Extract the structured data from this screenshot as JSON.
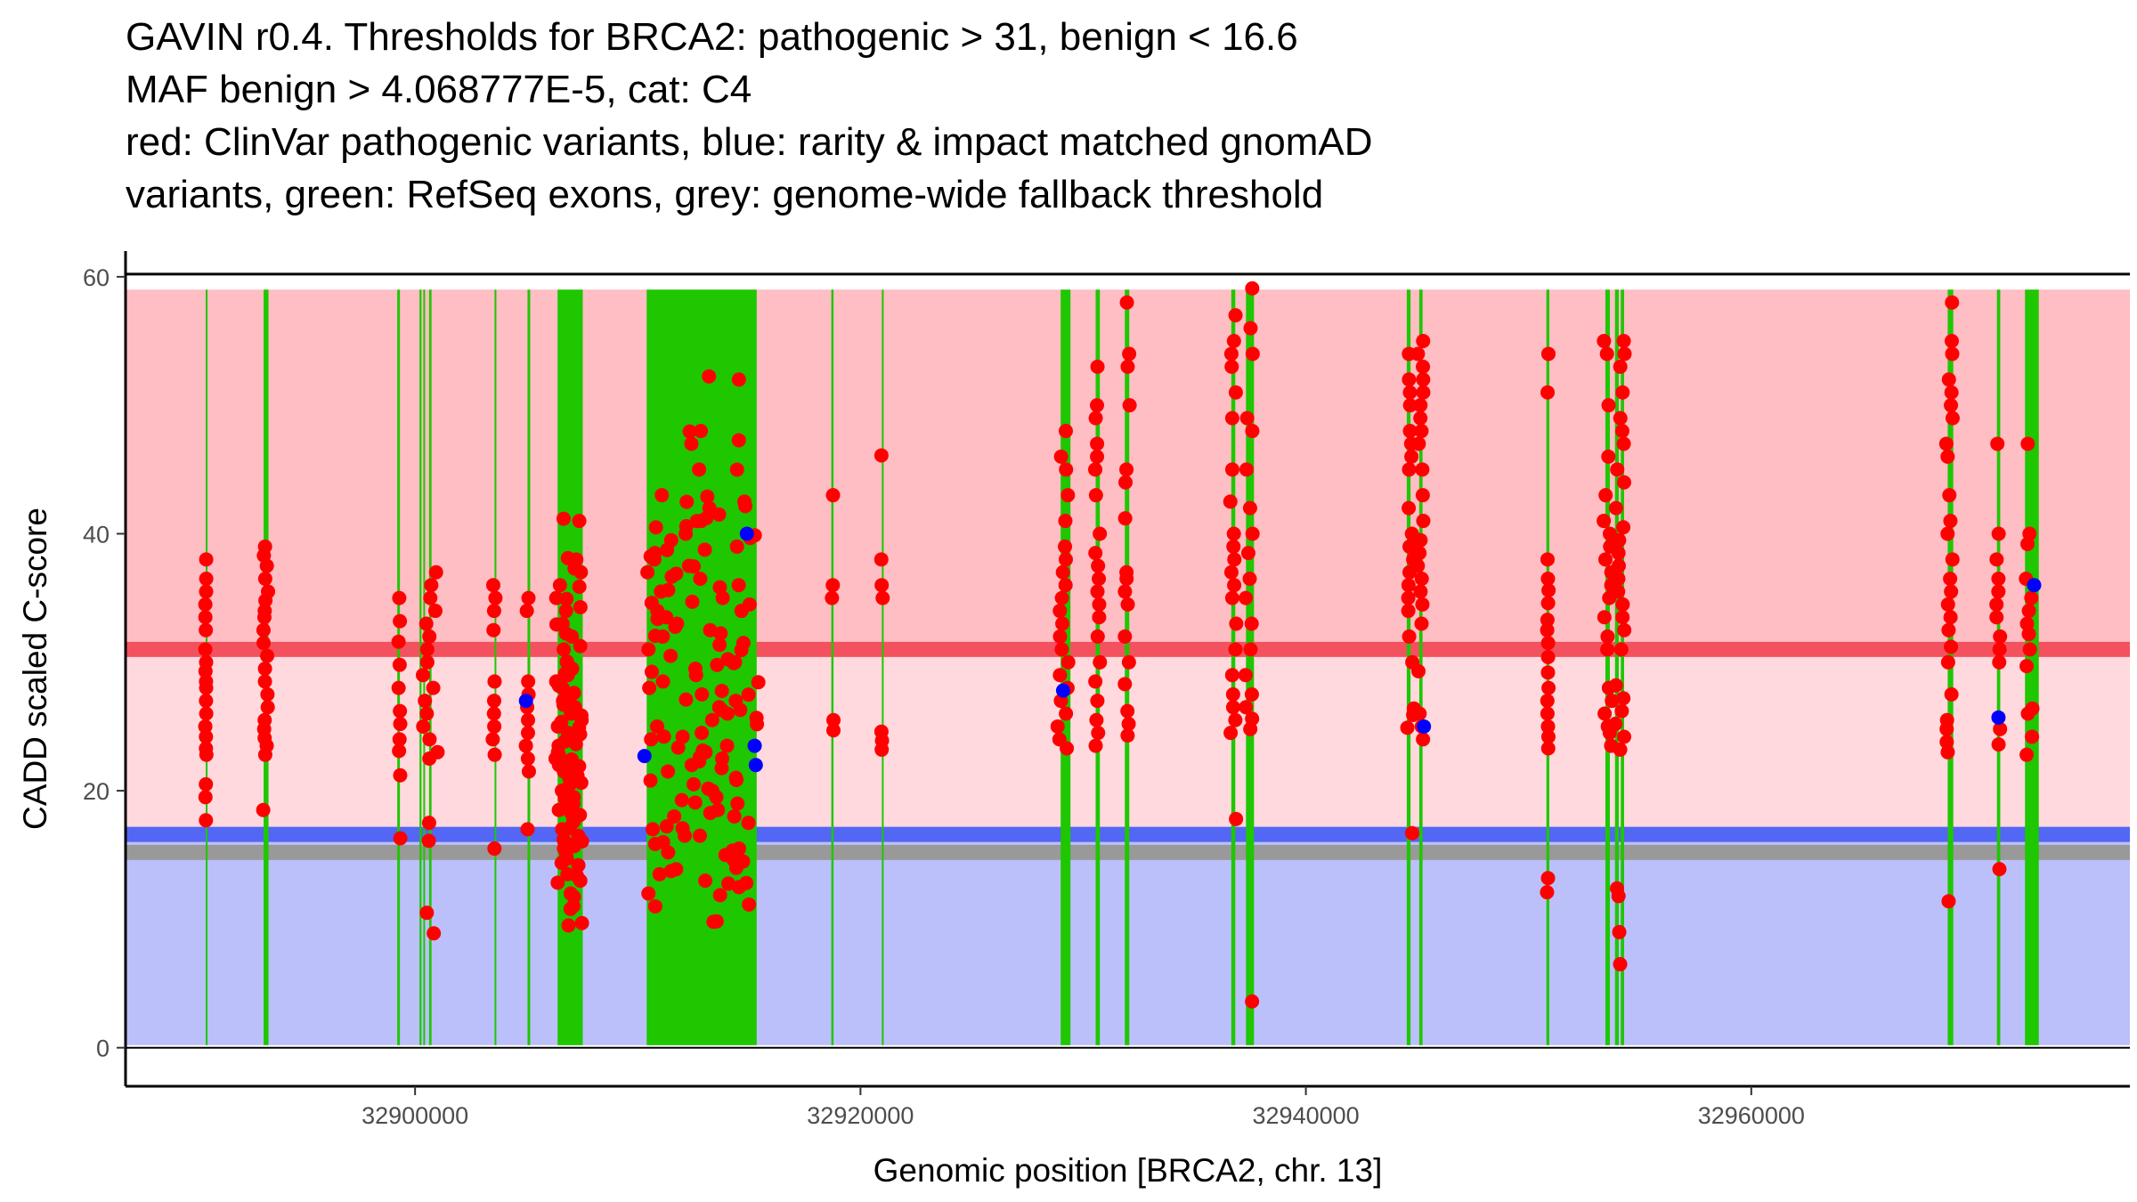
{
  "title_lines": [
    "GAVIN r0.4. Thresholds for BRCA2: pathogenic > 31, benign < 16.6",
    "MAF benign > 4.068777E-5, cat: C4",
    "red: ClinVar pathogenic variants, blue: rarity & impact matched gnomAD",
    "variants, green: RefSeq exons, grey: genome-wide fallback threshold"
  ],
  "chart_data": {
    "type": "scatter",
    "title": "GAVIN r0.4. Thresholds for BRCA2: pathogenic > 31, benign < 16.6 MAF benign > 4.068777E-5, cat: C4 red: ClinVar pathogenic variants, blue: rarity & impact matched gnomAD variants, green: RefSeq exons, grey: genome-wide fallback threshold",
    "xlabel": "Genomic position [BRCA2, chr. 13]",
    "ylabel": "CADD scaled C-score",
    "xlim": [
      32887000,
      32977000
    ],
    "ylim": [
      -3,
      62
    ],
    "x_ticks": [
      32900000,
      32920000,
      32940000,
      32960000
    ],
    "x_tick_labels": [
      "32900000",
      "32920000",
      "32940000",
      "32960000"
    ],
    "y_ticks": [
      0,
      20,
      40,
      60
    ],
    "y_tick_labels": [
      "0",
      "20",
      "40",
      "60"
    ],
    "grid": false,
    "colors": {
      "pathogenic_region": "#ffbdc4",
      "intermediate_region": "#ffd9de",
      "benign_region": "#bbc0fb",
      "pathogenic_threshold_line": "#f4515f",
      "benign_threshold_line": "#5466f4",
      "fallback_threshold_line": "#999999",
      "exon": "#1ec700",
      "clinvar_pathogenic": "#ff0000",
      "gnomad_matched": "#0000ff"
    },
    "regions": [
      {
        "name": "pathogenic",
        "y_from": 31,
        "y_to": 59,
        "color": "#ffbdc4"
      },
      {
        "name": "intermediate",
        "y_from": 16.6,
        "y_to": 31,
        "color": "#ffd9de"
      },
      {
        "name": "benign",
        "y_from": 0.2,
        "y_to": 16.6,
        "color": "#bbc0fb"
      }
    ],
    "threshold_lines": [
      {
        "name": "pathogenic threshold",
        "y": 31,
        "color": "#f4515f"
      },
      {
        "name": "benign threshold",
        "y": 16.6,
        "color": "#5466f4"
      },
      {
        "name": "genome-wide fallback threshold",
        "y": 15.2,
        "color": "#999999"
      }
    ],
    "exons": [
      {
        "start": 32890600,
        "end": 32890660
      },
      {
        "start": 32893200,
        "end": 32893420
      },
      {
        "start": 32899200,
        "end": 32899320
      },
      {
        "start": 32900200,
        "end": 32900290
      },
      {
        "start": 32900370,
        "end": 32900420
      },
      {
        "start": 32900630,
        "end": 32900740
      },
      {
        "start": 32903570,
        "end": 32903630
      },
      {
        "start": 32905050,
        "end": 32905170
      },
      {
        "start": 32906400,
        "end": 32907530
      },
      {
        "start": 32910400,
        "end": 32915340
      },
      {
        "start": 32918690,
        "end": 32918790
      },
      {
        "start": 32920960,
        "end": 32921040
      },
      {
        "start": 32928990,
        "end": 32929430
      },
      {
        "start": 32930560,
        "end": 32930750
      },
      {
        "start": 32931870,
        "end": 32932070
      },
      {
        "start": 32936650,
        "end": 32936830
      },
      {
        "start": 32937310,
        "end": 32937670
      },
      {
        "start": 32944530,
        "end": 32944700
      },
      {
        "start": 32945090,
        "end": 32945240
      },
      {
        "start": 32950800,
        "end": 32950930
      },
      {
        "start": 32953450,
        "end": 32953650
      },
      {
        "start": 32953880,
        "end": 32954050
      },
      {
        "start": 32954140,
        "end": 32954290
      },
      {
        "start": 32968820,
        "end": 32969070
      },
      {
        "start": 32971030,
        "end": 32971180
      },
      {
        "start": 32972290,
        "end": 32972910
      }
    ],
    "series": [
      {
        "name": "ClinVar pathogenic variants",
        "color": "#ff0000",
        "clusters": [
          {
            "x": 32890600,
            "x_spread": 60,
            "values": [
              17.7,
              19.5,
              20.5,
              22.8,
              23.3,
              24.2,
              25.0,
              26.0,
              27.0,
              28.0,
              28.5,
              29.3,
              30.0,
              31.0,
              32.5,
              33.5,
              34.5,
              35.5,
              36.5,
              38.0
            ]
          },
          {
            "x": 32893280,
            "x_spread": 250,
            "values": [
              18.5,
              22.8,
              23.5,
              24.1,
              24.8,
              25.5,
              26.5,
              27.5,
              28.5,
              29.5,
              30.5,
              31.5,
              32.5,
              33.5,
              34.0,
              34.8,
              35.5,
              36.5,
              37.5,
              38.3,
              39.0
            ]
          },
          {
            "x": 32899300,
            "x_spread": 100,
            "values": [
              16.3,
              21.2,
              23.1,
              24.0,
              25.2,
              26.2,
              28.0,
              29.8,
              31.6,
              33.2,
              35.0
            ]
          },
          {
            "x": 32900700,
            "x_spread": 700,
            "values": [
              8.9,
              10.5,
              16.1,
              17.5,
              22.5,
              23.0,
              24.0,
              25.0,
              26.0,
              27.0,
              28.0,
              29.0,
              30.0,
              31.0,
              32.0,
              33.0,
              34.0,
              35.0,
              36.0,
              37.0
            ]
          },
          {
            "x": 32903550,
            "x_spread": 130,
            "values": [
              15.5,
              22.8,
              24.0,
              25.0,
              26.0,
              27.0,
              28.5,
              32.5,
              34.0,
              35.0,
              36.0
            ]
          },
          {
            "x": 32905050,
            "x_spread": 150,
            "values": [
              17.0,
              21.5,
              22.5,
              23.5,
              24.5,
              25.5,
              26.5,
              27.5,
              28.5,
              34.0,
              35.0
            ]
          },
          {
            "x": 32906900,
            "x_spread": 1200,
            "values": [
              9.7,
              10.8,
              12.0,
              13.0,
              13.5,
              14.2,
              15.0,
              15.5,
              16.0,
              16.5,
              17.0,
              17.6,
              18.0,
              18.5,
              19.0,
              19.5,
              20.0,
              20.5,
              21.0,
              21.5,
              22.0,
              22.5,
              23.0,
              23.5,
              24.0,
              24.5,
              25.0,
              25.5,
              26.0,
              26.5,
              27.0,
              27.5,
              28.0,
              28.5,
              29.0,
              29.5,
              30.0,
              31.0,
              32.0,
              33.0,
              34.0,
              35.0,
              36.0,
              37.0,
              38.0,
              41.0
            ]
          },
          {
            "x": 32912900,
            "x_spread": 5100,
            "values": [
              9.8,
              11.0,
              12.0,
              12.5,
              13.0,
              13.5,
              14.0,
              14.5,
              15.0,
              15.5,
              16.0,
              16.5,
              17.0,
              17.5,
              18.0,
              18.5,
              19.0,
              19.5,
              20.0,
              20.5,
              21.0,
              21.5,
              22.0,
              22.5,
              23.0,
              23.5,
              24.0,
              24.5,
              25.0,
              25.5,
              26.0,
              26.5,
              27.0,
              27.5,
              28.0,
              28.5,
              29.0,
              29.5,
              30.0,
              30.5,
              31.0,
              31.5,
              32.0,
              32.5,
              33.0,
              33.5,
              34.0,
              34.5,
              35.0,
              35.5,
              36.0,
              36.5,
              37.0,
              37.5,
              38.0,
              38.5,
              39.0,
              39.5,
              40.0,
              40.5,
              41.0,
              41.5,
              42.0,
              42.5,
              43.0,
              45.0,
              47.0,
              48.0,
              52.0
            ]
          },
          {
            "x": 32918750,
            "x_spread": 80,
            "values": [
              24.7,
              25.5,
              35.0,
              36.0,
              43.0
            ]
          },
          {
            "x": 32920970,
            "x_spread": 80,
            "values": [
              23.2,
              23.9,
              24.6,
              35.0,
              36.0,
              38.0,
              46.1
            ]
          },
          {
            "x": 32929100,
            "x_spread": 500,
            "values": [
              23.3,
              24.0,
              25.0,
              26.0,
              27.0,
              28.0,
              29.0,
              30.0,
              31.0,
              32.0,
              33.0,
              34.0,
              35.0,
              36.0,
              37.0,
              38.0,
              39.0,
              41.0,
              43.0,
              45.0,
              46.0,
              48.0
            ]
          },
          {
            "x": 32930650,
            "x_spread": 220,
            "values": [
              23.5,
              24.5,
              25.5,
              27.0,
              28.5,
              30.0,
              32.0,
              33.5,
              34.5,
              35.5,
              36.5,
              37.5,
              38.5,
              40.0,
              43.0,
              45.0,
              46.0,
              47.0,
              49.0,
              50.0,
              53.0
            ]
          },
          {
            "x": 32931980,
            "x_spread": 220,
            "values": [
              24.3,
              25.2,
              26.2,
              28.3,
              30.0,
              32.0,
              34.5,
              35.5,
              36.5,
              37.0,
              41.2,
              44.0,
              45.0,
              50.0,
              53.0,
              54.0,
              58.0
            ]
          },
          {
            "x": 32936750,
            "x_spread": 300,
            "values": [
              17.8,
              24.5,
              25.5,
              26.5,
              27.5,
              29.0,
              31.0,
              33.0,
              35.0,
              36.0,
              37.0,
              38.0,
              39.0,
              40.0,
              42.5,
              45.0,
              49.0,
              51.0,
              53.0,
              54.0,
              55.0,
              57.0
            ]
          },
          {
            "x": 32937450,
            "x_spread": 400,
            "values": [
              3.6,
              24.8,
              25.6,
              26.5,
              27.5,
              29.0,
              31.0,
              33.0,
              35.0,
              36.5,
              38.5,
              40.0,
              42.0,
              45.0,
              48.0,
              49.0,
              54.0,
              56.0,
              59.1
            ]
          },
          {
            "x": 32944700,
            "x_spread": 300,
            "values": [
              16.7,
              24.9,
              25.9,
              26.4,
              30.0,
              32.0,
              34.0,
              35.0,
              36.0,
              37.0,
              38.0,
              39.0,
              40.0,
              42.0,
              45.0,
              46.0,
              47.0,
              48.0,
              50.0,
              51.0,
              52.0,
              54.0
            ]
          },
          {
            "x": 32945150,
            "x_spread": 250,
            "values": [
              24.0,
              25.0,
              26.0,
              29.3,
              33.0,
              34.5,
              35.5,
              36.5,
              37.5,
              38.5,
              39.5,
              41.0,
              43.0,
              45.0,
              47.0,
              48.0,
              49.0,
              50.0,
              51.0,
              52.0,
              53.0,
              54.0,
              55.0
            ]
          },
          {
            "x": 32950860,
            "x_spread": 80,
            "values": [
              12.1,
              13.2,
              23.3,
              24.2,
              25.0,
              26.0,
              27.0,
              28.0,
              29.2,
              30.4,
              31.5,
              32.5,
              33.3,
              34.6,
              35.6,
              36.5,
              38.0,
              51.0,
              54.0
            ]
          },
          {
            "x": 32953550,
            "x_spread": 400,
            "values": [
              23.5,
              24.5,
              25.0,
              26.0,
              27.0,
              28.0,
              31.0,
              32.0,
              33.5,
              35.0,
              36.0,
              37.0,
              38.0,
              39.0,
              40.0,
              41.0,
              43.0,
              46.0,
              50.0,
              54.0,
              55.0
            ]
          },
          {
            "x": 32954100,
            "x_spread": 450,
            "values": [
              6.5,
              9.0,
              11.8,
              12.4,
              23.2,
              24.2,
              25.2,
              26.2,
              27.2,
              28.2,
              31.0,
              32.5,
              33.5,
              34.5,
              35.5,
              36.5,
              37.5,
              38.5,
              39.5,
              40.5,
              42.0,
              44.0,
              45.0,
              47.0,
              48.0,
              49.0,
              51.0,
              53.0,
              54.0,
              55.0
            ]
          },
          {
            "x": 32968900,
            "x_spread": 300,
            "values": [
              11.4,
              23.0,
              23.8,
              24.8,
              25.5,
              27.5,
              30.0,
              31.2,
              32.5,
              33.5,
              34.5,
              35.5,
              36.5,
              38.0,
              40.0,
              41.0,
              43.0,
              46.0,
              47.0,
              49.0,
              50.0,
              51.0,
              52.0,
              54.0,
              55.0,
              58.0
            ]
          },
          {
            "x": 32971100,
            "x_spread": 180,
            "values": [
              13.9,
              23.6,
              24.8,
              30.0,
              31.0,
              32.0,
              33.5,
              34.5,
              35.5,
              36.5,
              38.0,
              40.0,
              47.0
            ]
          },
          {
            "x": 32972500,
            "x_spread": 350,
            "values": [
              22.8,
              24.2,
              26.0,
              26.4,
              29.7,
              31.0,
              32.2,
              33.0,
              34.0,
              35.0,
              36.5,
              39.2,
              40.0,
              47.0
            ]
          }
        ]
      },
      {
        "name": "rarity & impact matched gnomAD variants",
        "color": "#0000ff",
        "points": [
          {
            "x": 32910300,
            "y": 22.7
          },
          {
            "x": 32914900,
            "y": 40.0
          },
          {
            "x": 32915300,
            "y": 22.0
          },
          {
            "x": 32915250,
            "y": 23.5
          },
          {
            "x": 32904980,
            "y": 27.0
          },
          {
            "x": 32945300,
            "y": 25.0
          },
          {
            "x": 32971100,
            "y": 25.7
          },
          {
            "x": 32972700,
            "y": 36.0
          },
          {
            "x": 32929100,
            "y": 27.8
          }
        ]
      }
    ]
  }
}
